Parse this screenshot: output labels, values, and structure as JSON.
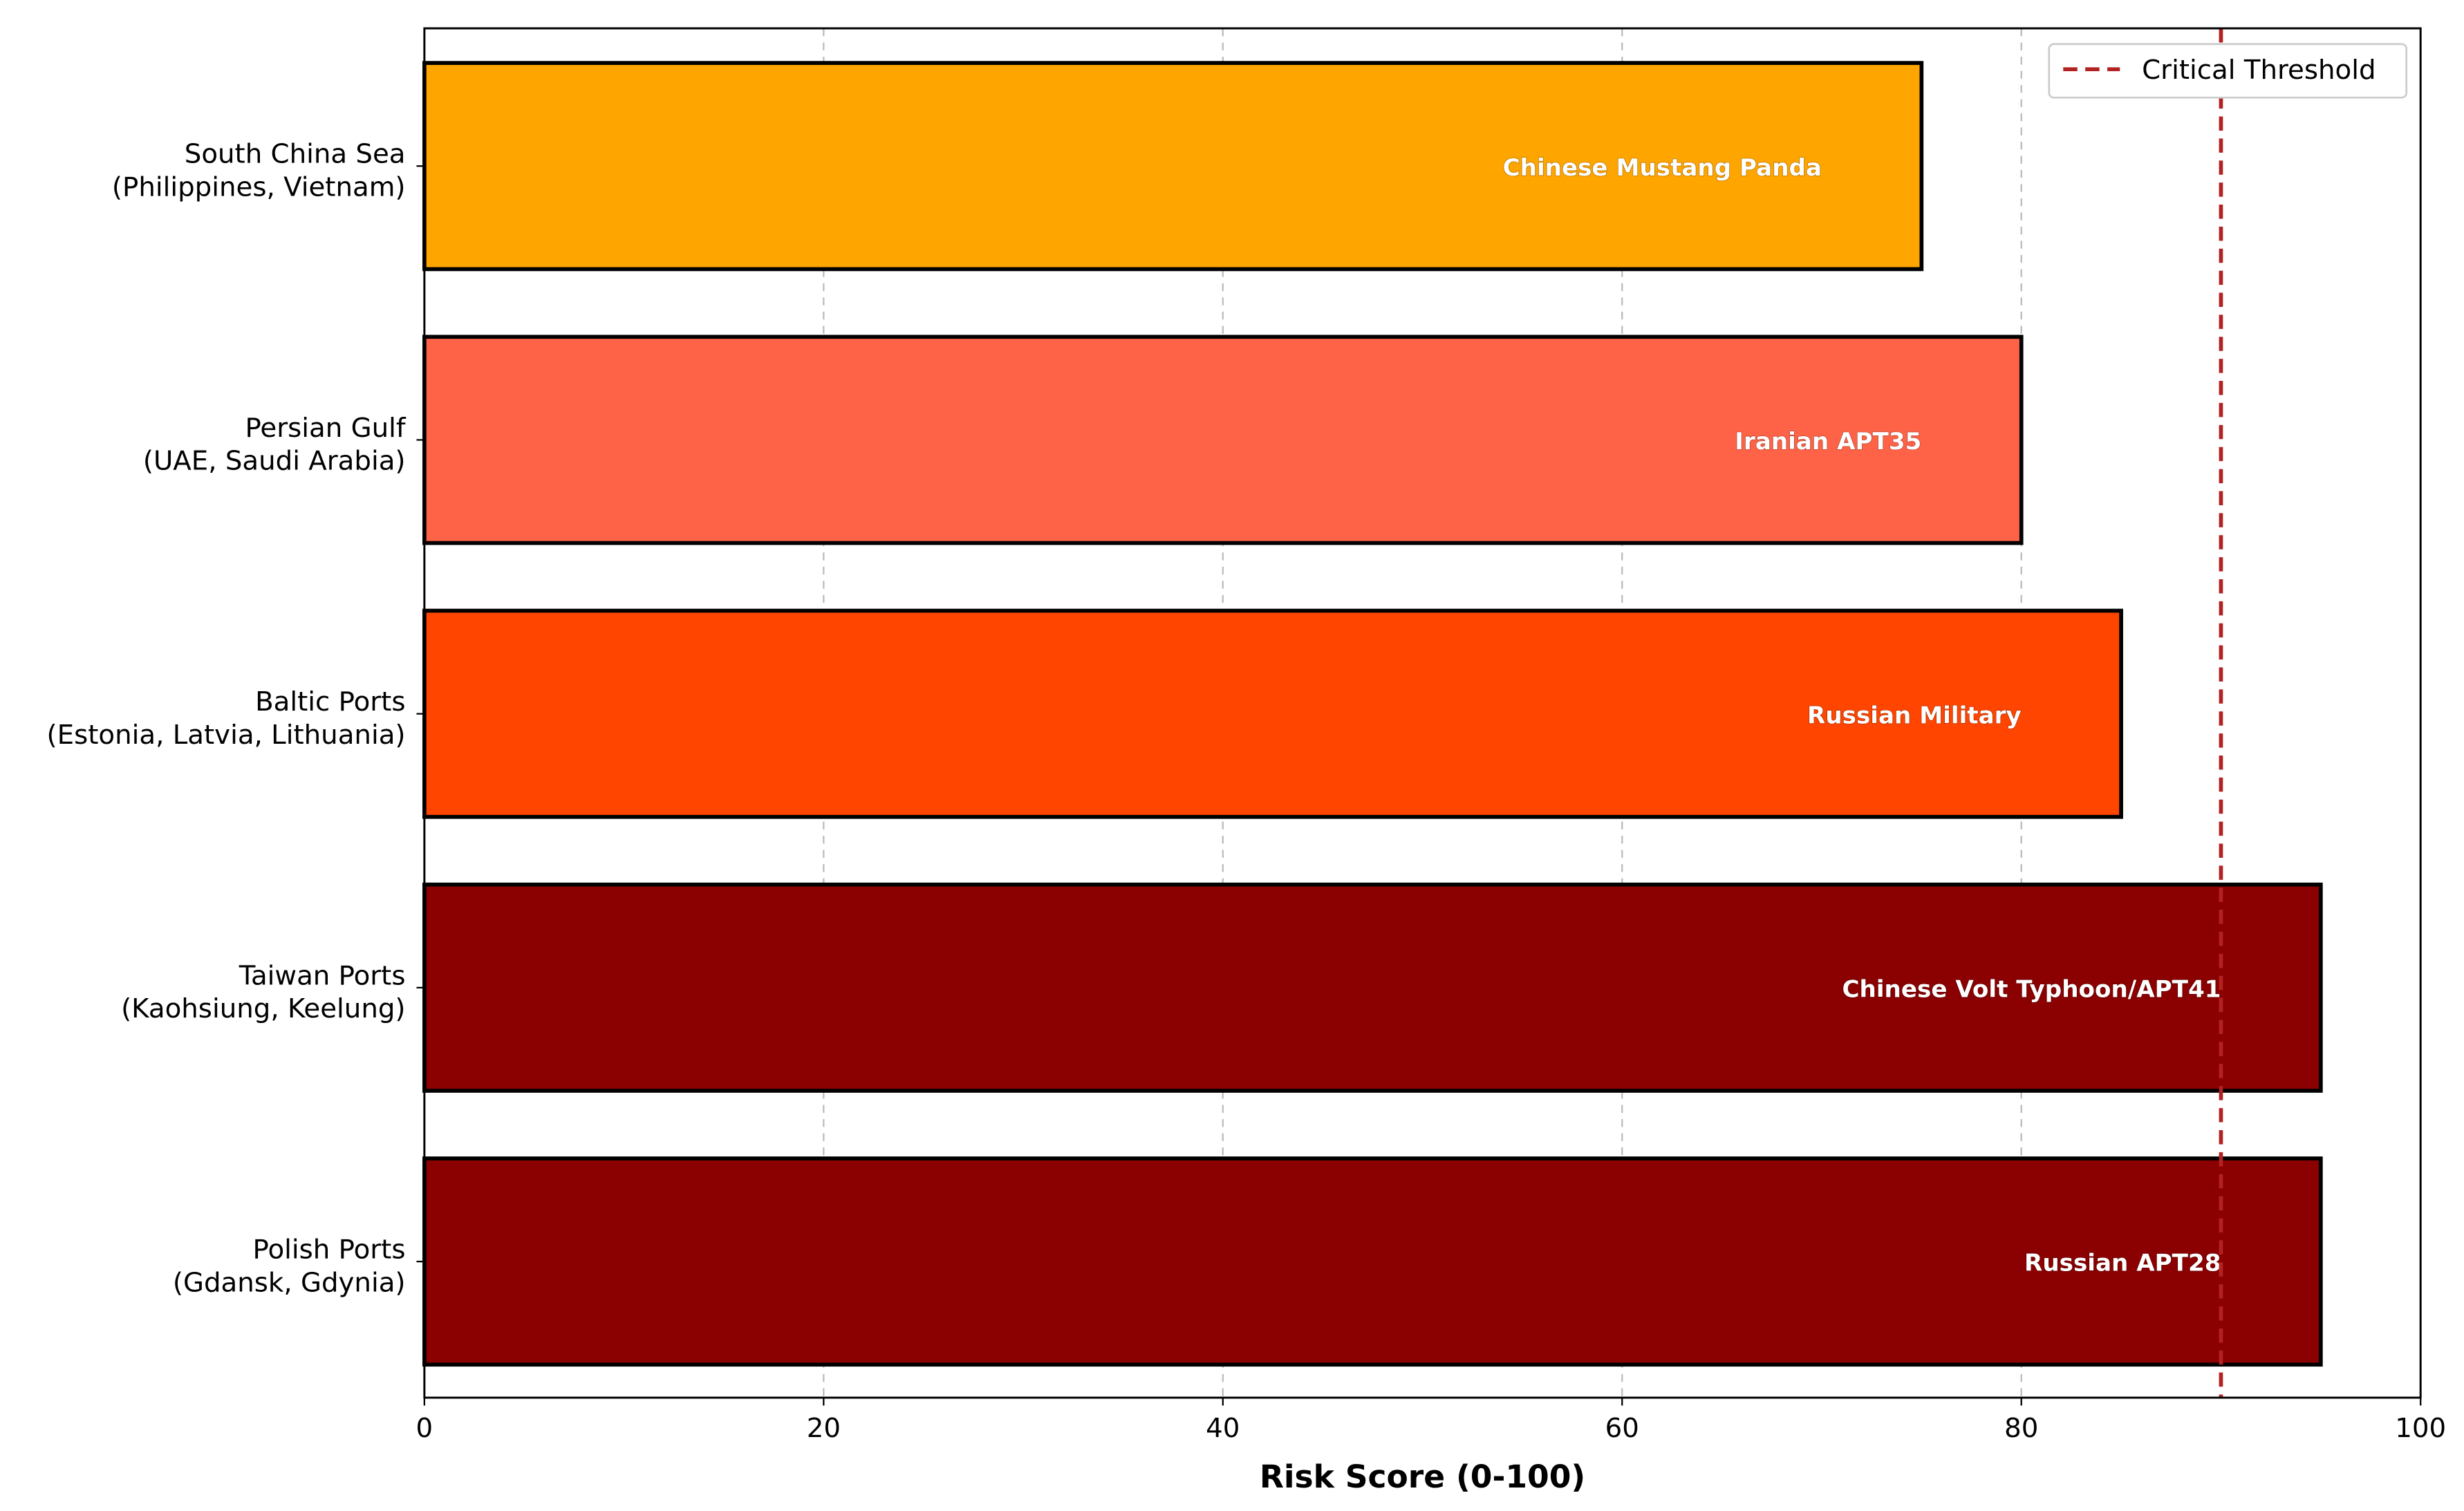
{
  "chart_data": {
    "type": "bar",
    "orientation": "horizontal",
    "categories": [
      [
        "South China Sea",
        "(Philippines, Vietnam)"
      ],
      [
        "Persian Gulf",
        "(UAE, Saudi Arabia)"
      ],
      [
        "Baltic Ports",
        "(Estonia, Latvia, Lithuania)"
      ],
      [
        "Taiwan Ports",
        "(Kaohsiung, Keelung)"
      ],
      [
        "Polish Ports",
        "(Gdansk, Gdynia)"
      ]
    ],
    "values": [
      75,
      80,
      85,
      95,
      95
    ],
    "bar_labels": [
      "Chinese Mustang Panda",
      "Iranian APT35",
      "Russian Military",
      "Chinese Volt Typhoon/APT41",
      "Russian APT28"
    ],
    "colors": [
      "#FFA500",
      "#FF6347",
      "#FF4500",
      "#8B0000",
      "#8B0000"
    ],
    "xlabel": "Risk Score (0-100)",
    "ylabel": "",
    "xlim": [
      0,
      100
    ],
    "xticks": [
      0,
      20,
      40,
      60,
      80,
      100
    ],
    "grid": "x-axis dashed",
    "threshold": {
      "value": 90,
      "label": "Critical Threshold",
      "color": "#B22222",
      "style": "dashed"
    },
    "legend": "top-right"
  }
}
